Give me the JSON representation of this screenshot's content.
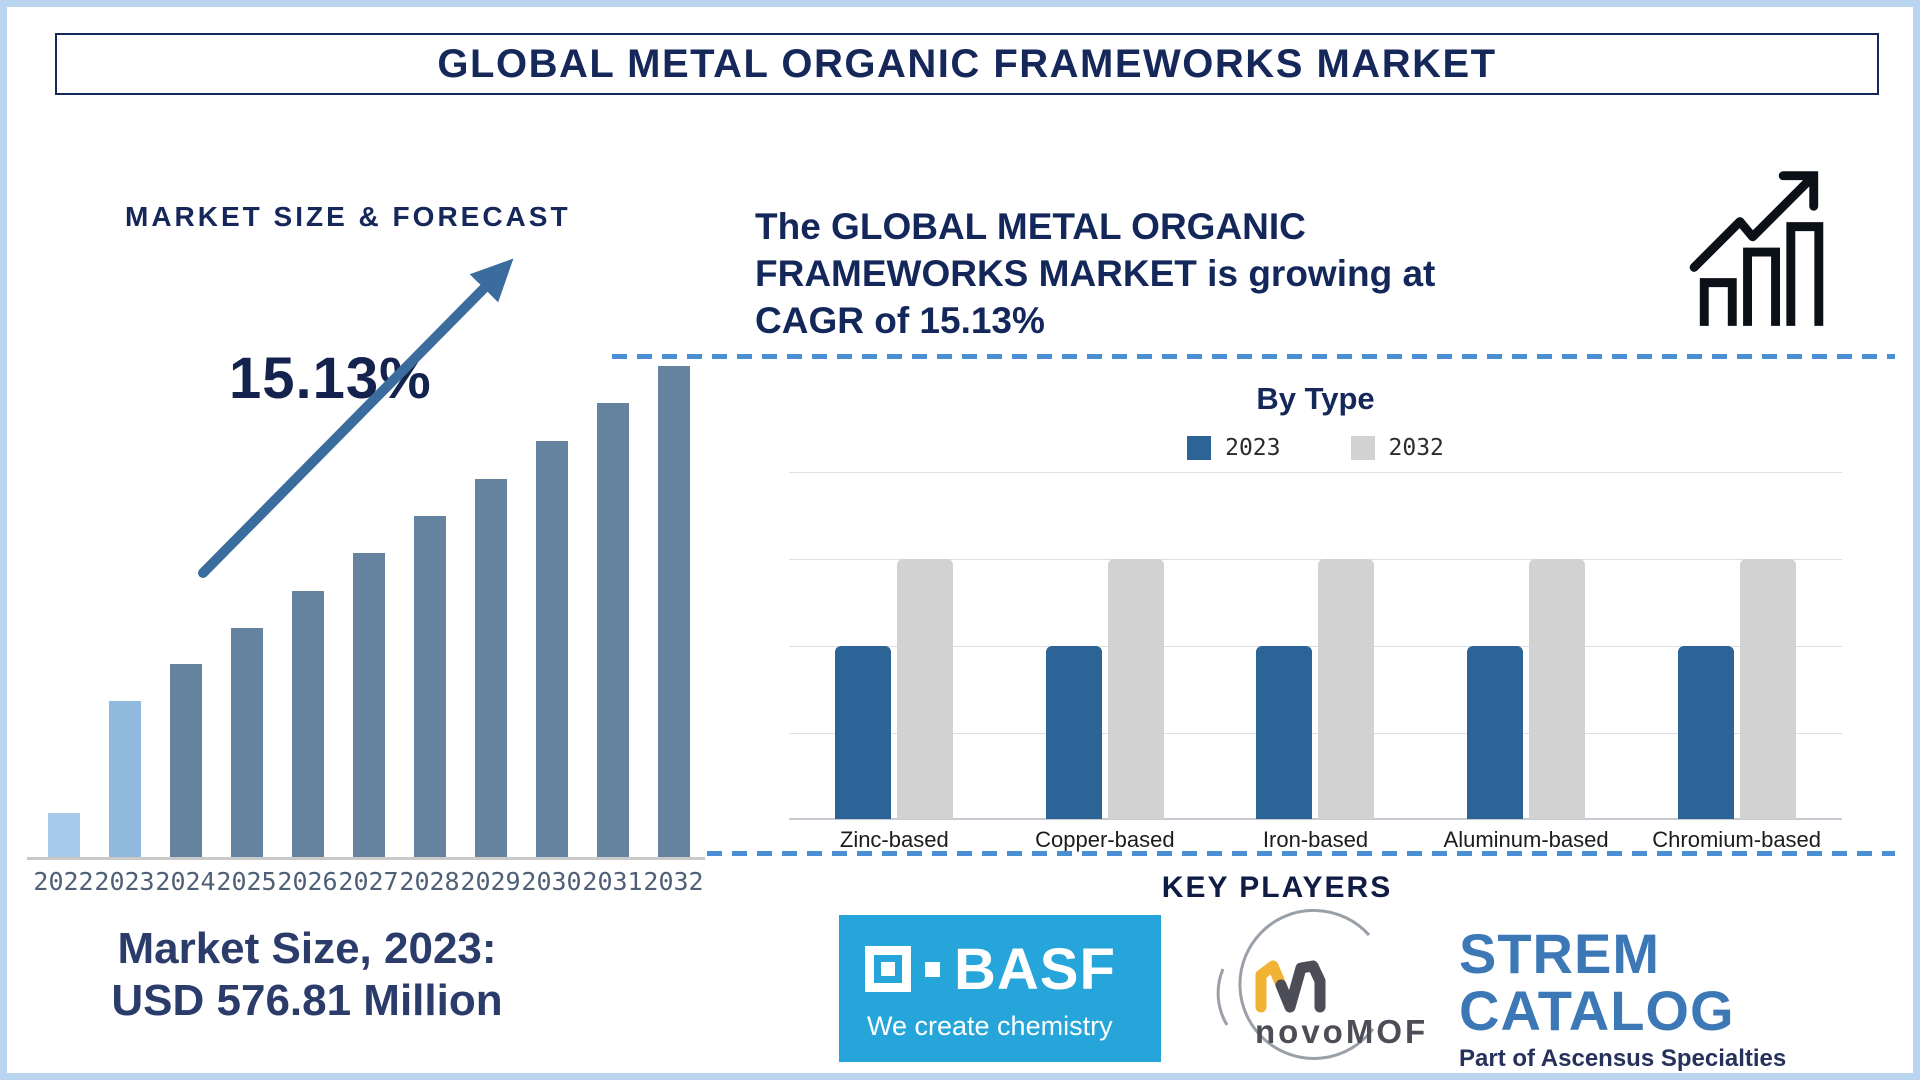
{
  "page": {
    "frame_color": "#b9d5f0",
    "background": "#ffffff",
    "navy": "#16275a",
    "dashed_line_color": "#4a8fd3"
  },
  "header": {
    "title": "GLOBAL METAL ORGANIC FRAMEWORKS MARKET"
  },
  "left_panel": {
    "heading": "MARKET SIZE & FORECAST",
    "cagr_label": "15.13%",
    "arrow_color": "#3b6c9e",
    "market_size_line1": "Market Size, 2023:",
    "market_size_line2": "USD 576.81 Million"
  },
  "right_panel": {
    "growth_lines": [
      "The GLOBAL METAL ORGANIC",
      "FRAMEWORKS MARKET is growing at",
      "CAGR of 15.13%"
    ],
    "growth_icon": "bar-chart-up-arrow-icon",
    "by_type_title": "By Type",
    "key_players_heading": "KEY PLAYERS"
  },
  "logos": {
    "basf": {
      "name": "BASF",
      "tagline": "We create chemistry",
      "bg": "#26a5da",
      "text_color": "#ffffff"
    },
    "novomof": {
      "name_lower": "novo",
      "name_upper": "MOF",
      "mark_yellow": "#f2b233",
      "mark_grey": "#4c4d56",
      "arc_grey": "#9aa0a8"
    },
    "strem": {
      "line1": "STREM",
      "line2": "CATALOG",
      "tagline": "Part of Ascensus Specialties",
      "blue": "#3c78b6",
      "navy": "#27325c"
    }
  },
  "chart_data": [
    {
      "id": "market-size-forecast",
      "type": "bar",
      "title": "MARKET SIZE & FORECAST",
      "categories": [
        "2022",
        "2023",
        "2024",
        "2025",
        "2026",
        "2027",
        "2028",
        "2029",
        "2030",
        "2031",
        "2032"
      ],
      "values": [
        45,
        157,
        194,
        230,
        267,
        305,
        342,
        379,
        417,
        455,
        492
      ],
      "value_unit": "relative bar height in px (no y-axis shown in source image)",
      "bar_colors": [
        "#a6c9e9",
        "#8fbade",
        "#65829f",
        "#65829f",
        "#65829f",
        "#65829f",
        "#65829f",
        "#65829f",
        "#65829f",
        "#65829f",
        "#65829f"
      ],
      "annotations": {
        "cagr": "15.13%",
        "market_size_2023": "USD 576.81 Million"
      },
      "xlabel": "",
      "ylabel": "",
      "grid": false
    },
    {
      "id": "by-type",
      "type": "bar",
      "subtype": "grouped",
      "title": "By Type",
      "categories": [
        "Zinc-based",
        "Copper-based",
        "Iron-based",
        "Aluminum-based",
        "Chromium-based"
      ],
      "series": [
        {
          "name": "2023",
          "color": "#2d6497",
          "values": [
            173,
            173,
            173,
            173,
            173
          ]
        },
        {
          "name": "2032",
          "color": "#d2d2d2",
          "values": [
            260,
            260,
            260,
            260,
            260
          ]
        }
      ],
      "value_unit": "relative bar height in px (no y-axis labels shown in source image)",
      "grid": true,
      "gridline_count": 5,
      "legend_position": "top"
    }
  ]
}
